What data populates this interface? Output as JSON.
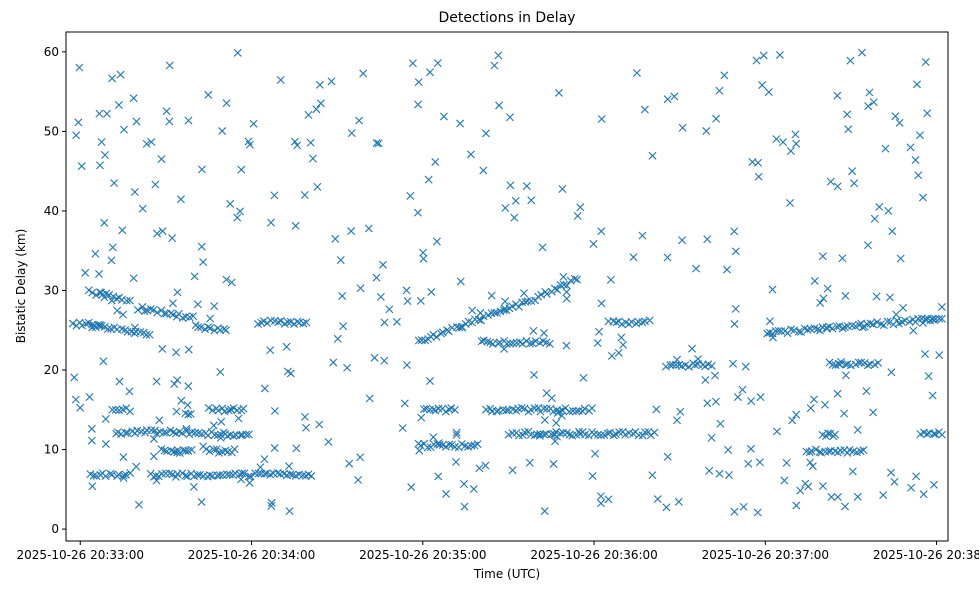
{
  "chart_data": {
    "type": "scatter",
    "title": "Detections in Delay",
    "xlabel": "Time (UTC)",
    "ylabel": "Bistatic Delay (km)",
    "x_ticks": [
      "2025-10-26 20:33:00",
      "2025-10-26 20:34:00",
      "2025-10-26 20:35:00",
      "2025-10-26 20:36:00",
      "2025-10-26 20:37:00",
      "2025-10-26 20:38:00"
    ],
    "x_tick_seconds": [
      0,
      60,
      120,
      180,
      240,
      300
    ],
    "xlim_seconds": [
      -5,
      304
    ],
    "y_ticks": [
      "0",
      "10",
      "20",
      "30",
      "40",
      "50",
      "60"
    ],
    "ylim": [
      -1.5,
      62.5
    ],
    "marker": "x",
    "color": "#1f77b4",
    "grid": false,
    "point_counts": {
      "tracks": 560,
      "scattered": 430
    },
    "series": [
      {
        "x_seconds_from": "2025-10-26 20:33:00",
        "tracks": [
          {
            "x": [
              -3,
              8
            ],
            "y": [
              25.8,
              25.8
            ]
          },
          {
            "x": [
              3,
              18
            ],
            "y": [
              29.8,
              28.8
            ]
          },
          {
            "x": [
              20,
              40
            ],
            "y": [
              27.8,
              26.5
            ]
          },
          {
            "x": [
              40,
              52
            ],
            "y": [
              25.5,
              25
            ]
          },
          {
            "x": [
              62,
              80
            ],
            "y": [
              26,
              26
            ]
          },
          {
            "x": [
              4,
              25
            ],
            "y": [
              25.5,
              24.5
            ]
          },
          {
            "x": [
              12,
              30
            ],
            "y": [
              12.2,
              12.2
            ]
          },
          {
            "x": [
              30,
              60
            ],
            "y": [
              12.2,
              11.8
            ]
          },
          {
            "x": [
              11,
              18
            ],
            "y": [
              15,
              15
            ]
          },
          {
            "x": [
              45,
              58
            ],
            "y": [
              15,
              15
            ]
          },
          {
            "x": [
              3,
              18
            ],
            "y": [
              6.8,
              6.8
            ]
          },
          {
            "x": [
              24,
              82
            ],
            "y": [
              6.8,
              6.8
            ]
          },
          {
            "x": [
              28,
              40
            ],
            "y": [
              9.8,
              9.8
            ]
          },
          {
            "x": [
              44,
              55
            ],
            "y": [
              9.8,
              9.8
            ]
          },
          {
            "x": [
              118,
              160
            ],
            "y": [
              23.5,
              29
            ]
          },
          {
            "x": [
              160,
              175
            ],
            "y": [
              29.2,
              31.5
            ]
          },
          {
            "x": [
              118,
              140
            ],
            "y": [
              10.5,
              10.5
            ]
          },
          {
            "x": [
              120,
              132
            ],
            "y": [
              15,
              15
            ]
          },
          {
            "x": [
              142,
              180
            ],
            "y": [
              15,
              15
            ]
          },
          {
            "x": [
              150,
              202
            ],
            "y": [
              12,
              12
            ]
          },
          {
            "x": [
              140,
              165
            ],
            "y": [
              23.5,
              23.5
            ]
          },
          {
            "x": [
              185,
              200
            ],
            "y": [
              26,
              26
            ]
          },
          {
            "x": [
              205,
              222
            ],
            "y": [
              20.6,
              20.6
            ]
          },
          {
            "x": [
              240,
              300
            ],
            "y": [
              24.6,
              26.4
            ]
          },
          {
            "x": [
              262,
              280
            ],
            "y": [
              20.8,
              20.8
            ]
          },
          {
            "x": [
              295,
              305
            ],
            "y": [
              26,
              26.5
            ]
          },
          {
            "x": [
              294,
              305
            ],
            "y": [
              12,
              12
            ]
          },
          {
            "x": [
              254,
              275
            ],
            "y": [
              9.8,
              9.8
            ]
          },
          {
            "x": [
              260,
              265
            ],
            "y": [
              11.8,
              11.8
            ]
          }
        ]
      }
    ]
  }
}
